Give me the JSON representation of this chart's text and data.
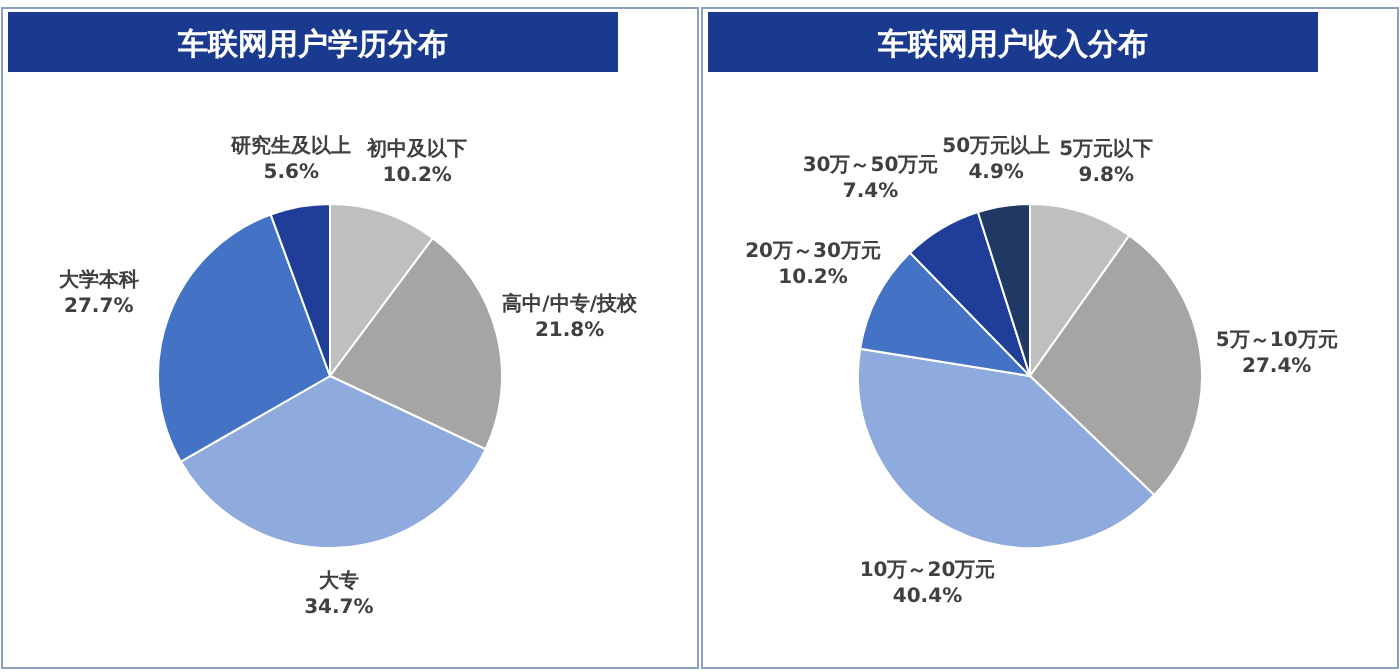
{
  "chart_data": [
    {
      "type": "pie",
      "title": "车联网用户学历分布",
      "categories": [
        "初中及以下",
        "高中/中专/技校",
        "大专",
        "大学本科",
        "研究生及以上"
      ],
      "values": [
        10.2,
        21.8,
        34.7,
        27.7,
        5.6
      ],
      "value_labels": [
        "10.2%",
        "21.8%",
        "34.7%",
        "27.7%",
        "5.6%"
      ],
      "colors": [
        "#bfbfbf",
        "#a5a5a5",
        "#8faadc",
        "#4472c4",
        "#1f3d99"
      ]
    },
    {
      "type": "pie",
      "title": "车联网用户收入分布",
      "categories": [
        "5万元以下",
        "5万～10万元",
        "10万～20万元",
        "20万～30万元",
        "30万～50万元",
        "50万元以上"
      ],
      "values": [
        9.8,
        27.4,
        40.4,
        10.2,
        7.4,
        4.9
      ],
      "value_labels": [
        "9.8%",
        "27.4%",
        "40.4%",
        "10.2%",
        "7.4%",
        "4.9%"
      ],
      "colors": [
        "#bfbfbf",
        "#a5a5a5",
        "#8faadc",
        "#4472c4",
        "#1f3d99",
        "#203864"
      ]
    }
  ]
}
